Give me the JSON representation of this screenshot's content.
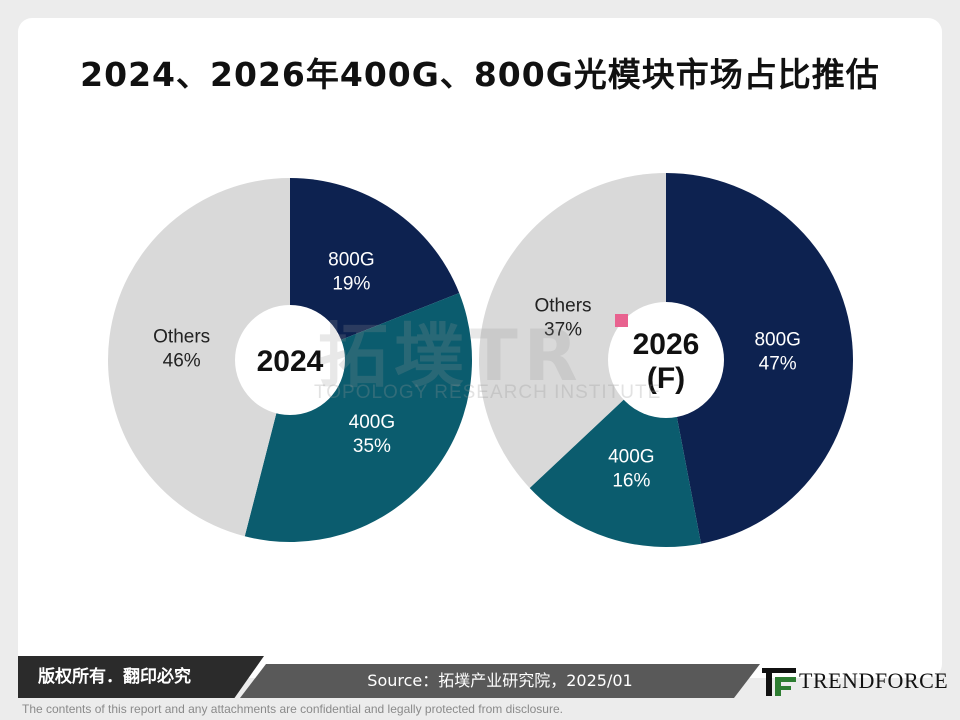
{
  "title": "2024、2026年400G、800G光模块市场占比推估",
  "chart_data": [
    {
      "type": "pie",
      "center_label": "2024",
      "slices": [
        {
          "name": "800G",
          "value": 19,
          "label": "19%",
          "color": "#0d2250"
        },
        {
          "name": "400G",
          "value": 35,
          "label": "35%",
          "color": "#0b5c6e"
        },
        {
          "name": "Others",
          "value": 46,
          "label": "46%",
          "color": "#d9d9d9"
        }
      ]
    },
    {
      "type": "pie",
      "center_label": "2026\n(F)",
      "slices": [
        {
          "name": "800G",
          "value": 47,
          "label": "47%",
          "color": "#0d2250"
        },
        {
          "name": "400G",
          "value": 16,
          "label": "16%",
          "color": "#0b5c6e"
        },
        {
          "name": "Others",
          "value": 37,
          "label": "37%",
          "color": "#d9d9d9"
        }
      ]
    }
  ],
  "watermark": {
    "main": "拓墣TR",
    "sub": "TOPOLOGY RESEARCH INSTITUTE"
  },
  "footer": {
    "copyright": "版权所有．翻印必究",
    "source": "Source：拓墣产业研究院，2025/01",
    "brand": "TRENDFORCE",
    "disclaimer": "The contents of this report and any attachments are confidential and legally protected from disclosure."
  },
  "colors": {
    "navy": "#0d2250",
    "teal": "#0b5c6e",
    "gray": "#d9d9d9",
    "logo_green": "#2e7d32"
  }
}
